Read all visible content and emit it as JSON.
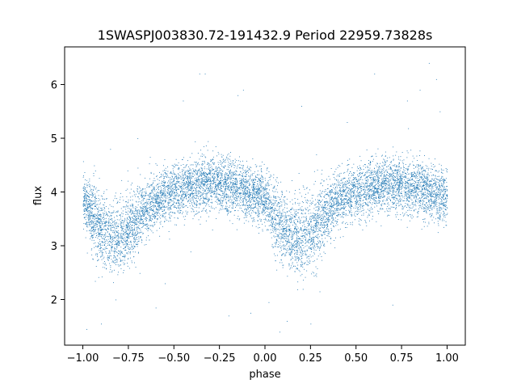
{
  "chart_data": {
    "type": "scatter",
    "title": "1SWASPJ003830.72-191432.9 Period 22959.73828s",
    "xlabel": "phase",
    "ylabel": "flux",
    "xlim": [
      -1.1,
      1.1
    ],
    "ylim": [
      1.15,
      6.7
    ],
    "xticks": [
      -1.0,
      -0.75,
      -0.5,
      -0.25,
      0.0,
      0.25,
      0.5,
      0.75,
      1.0
    ],
    "xtick_labels": [
      "−1.00",
      "−0.75",
      "−0.50",
      "−0.25",
      "0.00",
      "0.25",
      "0.50",
      "0.75",
      "1.00"
    ],
    "yticks": [
      2,
      3,
      4,
      5,
      6
    ],
    "ytick_labels": [
      "2",
      "3",
      "4",
      "5",
      "6"
    ],
    "grid": false,
    "marker_color": "#1f77b4",
    "series": [
      {
        "x_range": [
          -1.0,
          1.0
        ],
        "trend": {
          "x": [
            -1.0,
            -0.95,
            -0.9,
            -0.85,
            -0.8,
            -0.75,
            -0.7,
            -0.65,
            -0.6,
            -0.55,
            -0.5,
            -0.45,
            -0.4,
            -0.35,
            -0.3,
            -0.25,
            -0.2,
            -0.15,
            -0.1,
            -0.05,
            0.0,
            0.05,
            0.1,
            0.15,
            0.2,
            0.25,
            0.3,
            0.35,
            0.4,
            0.45,
            0.5,
            0.55,
            0.6,
            0.65,
            0.7,
            0.75,
            0.8,
            0.85,
            0.9,
            0.95,
            1.0
          ],
          "y": [
            3.9,
            3.55,
            3.3,
            3.15,
            3.15,
            3.3,
            3.5,
            3.7,
            3.85,
            3.95,
            4.0,
            4.05,
            4.1,
            4.15,
            4.15,
            4.15,
            4.1,
            4.05,
            4.0,
            3.95,
            3.9,
            3.55,
            3.3,
            3.15,
            3.15,
            3.3,
            3.5,
            3.7,
            3.85,
            3.95,
            4.0,
            4.05,
            4.1,
            4.15,
            4.15,
            4.15,
            4.1,
            4.05,
            4.0,
            3.95,
            3.9
          ]
        },
        "scatter_sigma": 0.25,
        "point_count": 9000,
        "outliers": [
          [
            -0.98,
            1.45
          ],
          [
            -0.9,
            1.55
          ],
          [
            -0.82,
            2.0
          ],
          [
            -0.6,
            1.85
          ],
          [
            -0.45,
            5.7
          ],
          [
            -0.36,
            6.2
          ],
          [
            -0.33,
            6.2
          ],
          [
            -0.15,
            5.8
          ],
          [
            -0.12,
            5.9
          ],
          [
            -0.08,
            1.75
          ],
          [
            0.02,
            1.95
          ],
          [
            0.08,
            1.4
          ],
          [
            0.12,
            1.6
          ],
          [
            0.25,
            1.55
          ],
          [
            0.6,
            6.2
          ],
          [
            0.78,
            5.7
          ],
          [
            0.85,
            5.9
          ],
          [
            0.9,
            6.4
          ],
          [
            0.94,
            6.1
          ],
          [
            -0.85,
            4.8
          ],
          [
            -0.7,
            5.0
          ],
          [
            0.3,
            2.15
          ],
          [
            0.45,
            5.3
          ],
          [
            0.2,
            5.6
          ],
          [
            0.7,
            1.9
          ],
          [
            -0.2,
            1.7
          ],
          [
            0.96,
            5.5
          ],
          [
            -0.55,
            2.3
          ]
        ]
      }
    ]
  }
}
